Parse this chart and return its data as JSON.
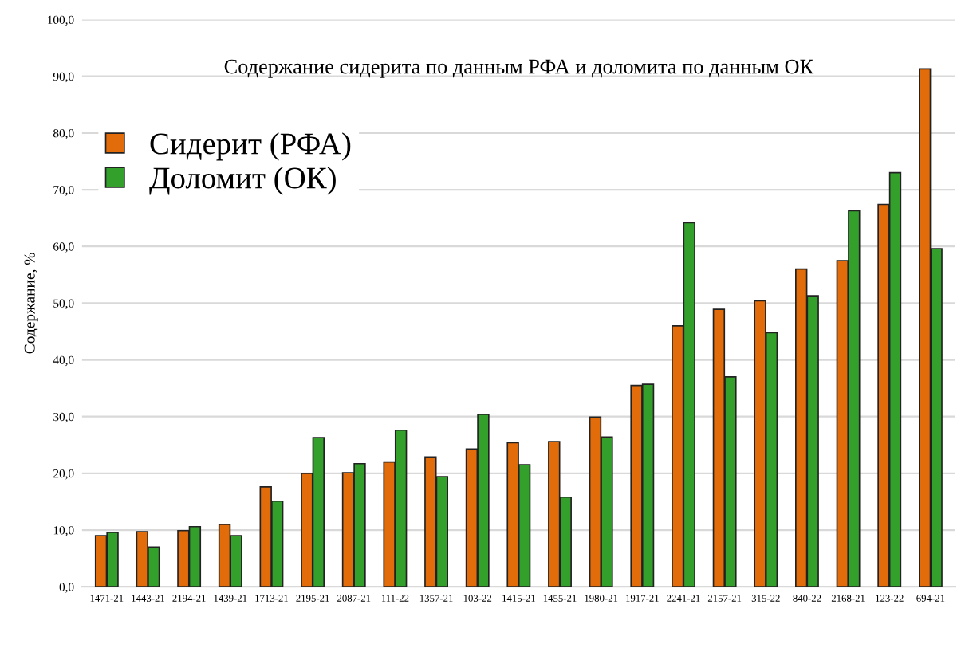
{
  "chart_data": {
    "type": "bar",
    "title": "Содержание сидерита по данным РФА и доломита по данным ОК",
    "ylabel": "Содержание, %",
    "categories": [
      "1471-21",
      "1443-21",
      "2194-21",
      "1439-21",
      "1713-21",
      "2195-21",
      "2087-21",
      "111-22",
      "1357-21",
      "103-22",
      "1415-21",
      "1455-21",
      "1980-21",
      "1917-21",
      "2241-21",
      "2157-21",
      "315-22",
      "840-22",
      "2168-21",
      "123-22",
      "694-21"
    ],
    "series": [
      {
        "name": "Сидерит (РФА)",
        "color": "#e36c0a",
        "values": [
          9.0,
          9.7,
          9.9,
          11.0,
          17.6,
          20.0,
          20.1,
          22.0,
          22.9,
          24.3,
          25.4,
          25.6,
          29.9,
          35.5,
          46.0,
          48.9,
          50.4,
          56.0,
          57.5,
          67.4,
          91.3
        ]
      },
      {
        "name": "Доломит (ОК)",
        "color": "#33a02c",
        "values": [
          9.6,
          7.0,
          10.6,
          9.0,
          15.1,
          26.3,
          21.7,
          27.6,
          19.4,
          30.4,
          21.5,
          15.8,
          26.4,
          35.7,
          64.2,
          37.0,
          44.8,
          51.3,
          66.3,
          73.0,
          59.6
        ]
      }
    ],
    "ylim": [
      0,
      100
    ],
    "yticks": [
      {
        "value": 0,
        "label": "0,0"
      },
      {
        "value": 10,
        "label": "10,0"
      },
      {
        "value": 20,
        "label": "20,0"
      },
      {
        "value": 30,
        "label": "30,0"
      },
      {
        "value": 40,
        "label": "40,0"
      },
      {
        "value": 50,
        "label": "50,0"
      },
      {
        "value": 60,
        "label": "60,0"
      },
      {
        "value": 70,
        "label": "70,0"
      },
      {
        "value": 80,
        "label": "80,0"
      },
      {
        "value": 90,
        "label": "90,0"
      },
      {
        "value": 100,
        "label": "100,0"
      }
    ],
    "grid": "y",
    "legend": "top left"
  }
}
